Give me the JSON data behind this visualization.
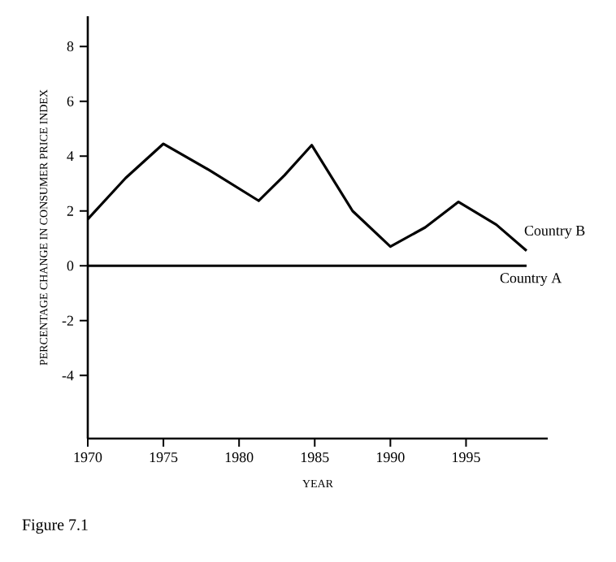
{
  "chart_data": {
    "type": "line",
    "xlabel": "YEAR",
    "ylabel": "PERCENTAGE CHANGE IN CONSUMER PRICE INDEX",
    "annotations": [
      "Figure 7.1"
    ],
    "xlim": [
      1970,
      2000.4
    ],
    "ylim": [
      -6.3,
      9.1
    ],
    "xticks": [
      1970,
      1975,
      1980,
      1985,
      1990,
      1995
    ],
    "yticks": [
      -4,
      -2,
      0,
      2,
      4,
      6,
      8
    ],
    "legend": false,
    "grid": false,
    "marker": "none",
    "line_style": "solid",
    "series": [
      {
        "name": "Country B",
        "color": "#000000",
        "x": [
          1970,
          1972.5,
          1975,
          1978,
          1981.3,
          1983,
          1984.8,
          1987.5,
          1990,
          1992.3,
          1994.5,
          1997,
          1999
        ],
        "values": [
          1.7,
          3.2,
          4.45,
          3.5,
          2.37,
          3.3,
          4.4,
          2.0,
          0.7,
          1.4,
          2.33,
          1.5,
          0.55
        ]
      },
      {
        "name": "Country A",
        "color": "#000000",
        "x": [
          1970,
          1999
        ],
        "values": [
          0,
          0
        ]
      }
    ]
  }
}
